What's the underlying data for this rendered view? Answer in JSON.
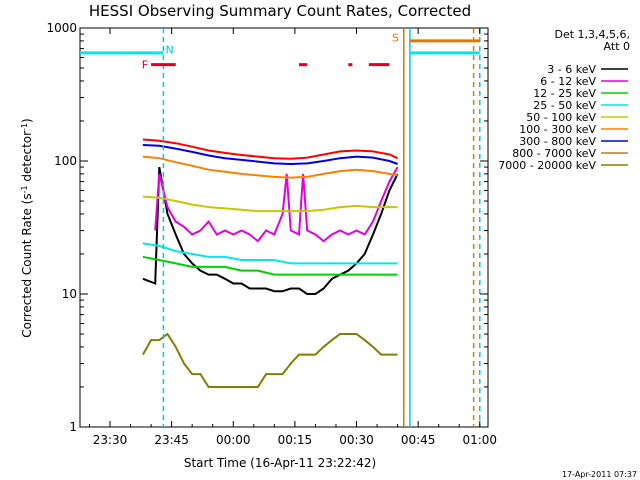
{
  "chart_data": {
    "type": "line",
    "title": "HESSI Observing Summary Count Rates, Corrected",
    "xlabel": "Start Time (16-Apr-11 23:22:42)",
    "ylabel_main": "Corrected Count Rate (s",
    "ylabel_sup1": "-1",
    "ylabel_mid": " detector",
    "ylabel_sup2": "-1",
    "ylabel_end": ")",
    "yscale": "log",
    "ylim": [
      1,
      1000
    ],
    "xlim_minutes": [
      -37.3,
      62
    ],
    "x_ticks": [
      {
        "label": "23:30",
        "value": -30
      },
      {
        "label": "23:45",
        "value": -15
      },
      {
        "label": "00:00",
        "value": 0
      },
      {
        "label": "00:15",
        "value": 15
      },
      {
        "label": "00:30",
        "value": 30
      },
      {
        "label": "00:45",
        "value": 45
      },
      {
        "label": "01:00",
        "value": 60
      }
    ],
    "y_ticks": [
      {
        "label": "1",
        "value": 1
      },
      {
        "label": "10",
        "value": 10
      },
      {
        "label": "100",
        "value": 100
      },
      {
        "label": "1000",
        "value": 1000
      }
    ],
    "legend_header": [
      "Det 1,3,4,5,6,",
      "Att 0"
    ],
    "series": [
      {
        "name": "3 - 6 keV",
        "color": "#000000",
        "points": [
          [
            -22,
            13
          ],
          [
            -19,
            12
          ],
          [
            -18,
            90
          ],
          [
            -16,
            40
          ],
          [
            -14,
            28
          ],
          [
            -12,
            20
          ],
          [
            -10,
            17
          ],
          [
            -8,
            15
          ],
          [
            -6,
            14
          ],
          [
            -4,
            14
          ],
          [
            -2,
            13
          ],
          [
            0,
            12
          ],
          [
            2,
            12
          ],
          [
            4,
            11
          ],
          [
            6,
            11
          ],
          [
            8,
            11
          ],
          [
            10,
            10.5
          ],
          [
            12,
            10.5
          ],
          [
            14,
            11
          ],
          [
            16,
            11
          ],
          [
            18,
            10
          ],
          [
            20,
            10
          ],
          [
            22,
            11
          ],
          [
            24,
            13
          ],
          [
            26,
            14
          ],
          [
            28,
            15
          ],
          [
            30,
            17
          ],
          [
            32,
            20
          ],
          [
            34,
            28
          ],
          [
            36,
            40
          ],
          [
            38,
            60
          ],
          [
            40,
            80
          ]
        ]
      },
      {
        "name": "6 - 12 keV",
        "color": "#e000e0",
        "points": [
          [
            -19,
            30
          ],
          [
            -18,
            80
          ],
          [
            -16,
            45
          ],
          [
            -14,
            35
          ],
          [
            -12,
            32
          ],
          [
            -10,
            28
          ],
          [
            -8,
            30
          ],
          [
            -6,
            35
          ],
          [
            -4,
            28
          ],
          [
            -2,
            30
          ],
          [
            0,
            28
          ],
          [
            2,
            30
          ],
          [
            4,
            28
          ],
          [
            6,
            25
          ],
          [
            8,
            30
          ],
          [
            10,
            28
          ],
          [
            12,
            40
          ],
          [
            13,
            80
          ],
          [
            14,
            30
          ],
          [
            16,
            28
          ],
          [
            17,
            80
          ],
          [
            18,
            30
          ],
          [
            20,
            28
          ],
          [
            22,
            25
          ],
          [
            24,
            28
          ],
          [
            26,
            30
          ],
          [
            28,
            28
          ],
          [
            30,
            30
          ],
          [
            32,
            28
          ],
          [
            34,
            35
          ],
          [
            36,
            50
          ],
          [
            38,
            70
          ],
          [
            40,
            90
          ]
        ]
      },
      {
        "name": "12 - 25 keV",
        "color": "#00d000",
        "points": [
          [
            -22,
            19
          ],
          [
            -18,
            18
          ],
          [
            -14,
            17
          ],
          [
            -10,
            16
          ],
          [
            -6,
            16
          ],
          [
            -2,
            16
          ],
          [
            2,
            15
          ],
          [
            6,
            15
          ],
          [
            10,
            14
          ],
          [
            14,
            14
          ],
          [
            18,
            14
          ],
          [
            22,
            14
          ],
          [
            26,
            14
          ],
          [
            30,
            14
          ],
          [
            34,
            14
          ],
          [
            38,
            14
          ],
          [
            40,
            14
          ]
        ]
      },
      {
        "name": "25 - 50 keV",
        "color": "#00e8e8",
        "points": [
          [
            -22,
            24
          ],
          [
            -18,
            23
          ],
          [
            -14,
            21
          ],
          [
            -10,
            20
          ],
          [
            -6,
            19
          ],
          [
            -2,
            19
          ],
          [
            2,
            18
          ],
          [
            6,
            18
          ],
          [
            10,
            18
          ],
          [
            14,
            17
          ],
          [
            18,
            17
          ],
          [
            22,
            17
          ],
          [
            26,
            17
          ],
          [
            30,
            17
          ],
          [
            34,
            17
          ],
          [
            38,
            17
          ],
          [
            40,
            17
          ]
        ]
      },
      {
        "name": "50 - 100 keV",
        "color": "#c8c800",
        "points": [
          [
            -22,
            54
          ],
          [
            -18,
            53
          ],
          [
            -14,
            50
          ],
          [
            -10,
            47
          ],
          [
            -6,
            45
          ],
          [
            -2,
            44
          ],
          [
            2,
            43
          ],
          [
            6,
            42
          ],
          [
            10,
            42
          ],
          [
            14,
            42
          ],
          [
            18,
            42
          ],
          [
            22,
            43
          ],
          [
            26,
            45
          ],
          [
            30,
            46
          ],
          [
            34,
            45
          ],
          [
            38,
            45
          ],
          [
            40,
            45
          ]
        ]
      },
      {
        "name": "100 - 300 keV",
        "color": "#ff8000",
        "points": [
          [
            -22,
            108
          ],
          [
            -18,
            105
          ],
          [
            -14,
            98
          ],
          [
            -10,
            92
          ],
          [
            -6,
            86
          ],
          [
            -2,
            83
          ],
          [
            2,
            80
          ],
          [
            6,
            78
          ],
          [
            10,
            76
          ],
          [
            14,
            75
          ],
          [
            18,
            76
          ],
          [
            22,
            80
          ],
          [
            26,
            84
          ],
          [
            30,
            86
          ],
          [
            34,
            84
          ],
          [
            38,
            80
          ],
          [
            40,
            78
          ]
        ]
      },
      {
        "name": "300 - 800 keV",
        "color": "#0000e0",
        "points": [
          [
            -22,
            132
          ],
          [
            -18,
            130
          ],
          [
            -14,
            124
          ],
          [
            -10,
            117
          ],
          [
            -6,
            110
          ],
          [
            -2,
            105
          ],
          [
            2,
            102
          ],
          [
            6,
            99
          ],
          [
            10,
            96
          ],
          [
            14,
            95
          ],
          [
            18,
            96
          ],
          [
            22,
            100
          ],
          [
            26,
            105
          ],
          [
            30,
            108
          ],
          [
            34,
            106
          ],
          [
            38,
            100
          ],
          [
            40,
            95
          ]
        ]
      },
      {
        "name": "800 - 7000 keV",
        "color": "#c07820",
        "points": []
      },
      {
        "name": "7000 - 20000 keV",
        "color": "#808000",
        "points": [
          [
            -22,
            3.5
          ],
          [
            -20,
            4.5
          ],
          [
            -18,
            4.5
          ],
          [
            -16,
            5
          ],
          [
            -14,
            4
          ],
          [
            -12,
            3
          ],
          [
            -10,
            2.5
          ],
          [
            -8,
            2.5
          ],
          [
            -6,
            2
          ],
          [
            -4,
            2
          ],
          [
            -2,
            2
          ],
          [
            0,
            2
          ],
          [
            2,
            2
          ],
          [
            4,
            2
          ],
          [
            6,
            2
          ],
          [
            8,
            2.5
          ],
          [
            10,
            2.5
          ],
          [
            12,
            2.5
          ],
          [
            14,
            3
          ],
          [
            16,
            3.5
          ],
          [
            18,
            3.5
          ],
          [
            20,
            3.5
          ],
          [
            22,
            4
          ],
          [
            24,
            4.5
          ],
          [
            26,
            5
          ],
          [
            28,
            5
          ],
          [
            30,
            5
          ],
          [
            32,
            4.5
          ],
          [
            34,
            4
          ],
          [
            36,
            3.5
          ],
          [
            38,
            3.5
          ],
          [
            40,
            3.5
          ]
        ]
      },
      {
        "name": "",
        "color": "#ff0000",
        "points": [
          [
            -22,
            145
          ],
          [
            -18,
            142
          ],
          [
            -14,
            136
          ],
          [
            -10,
            128
          ],
          [
            -6,
            120
          ],
          [
            -2,
            115
          ],
          [
            2,
            111
          ],
          [
            6,
            108
          ],
          [
            10,
            105
          ],
          [
            14,
            104
          ],
          [
            18,
            106
          ],
          [
            22,
            112
          ],
          [
            26,
            118
          ],
          [
            30,
            120
          ],
          [
            34,
            118
          ],
          [
            38,
            112
          ],
          [
            40,
            105
          ]
        ]
      }
    ],
    "flags": [
      {
        "label": "F",
        "color": "#e00020"
      },
      {
        "label": "N",
        "color": "#00c8e8"
      },
      {
        "label": "S",
        "color": "#e07800"
      }
    ],
    "flag_segments": {
      "cyan_bar": [
        [
          -37.3,
          -17
        ],
        [
          43,
          60
        ]
      ],
      "orange_bar": [
        [
          43,
          60
        ]
      ],
      "red_bar": [
        [
          -20,
          -14
        ],
        [
          16,
          18
        ],
        [
          28,
          29
        ],
        [
          33,
          38
        ]
      ]
    },
    "vertical_lines": [
      {
        "x": -17,
        "color": "#00c8e8",
        "style": "dash"
      },
      {
        "x": 41.5,
        "color": "#c08000",
        "style": "solid"
      },
      {
        "x": 43,
        "color": "#00c8e8",
        "style": "solid"
      },
      {
        "x": 58.5,
        "color": "#e07800",
        "style": "dash"
      },
      {
        "x": 60,
        "color": "#00c8e8",
        "style": "dash"
      }
    ],
    "footer_timestamp": "17-Apr-2011 07:37"
  }
}
